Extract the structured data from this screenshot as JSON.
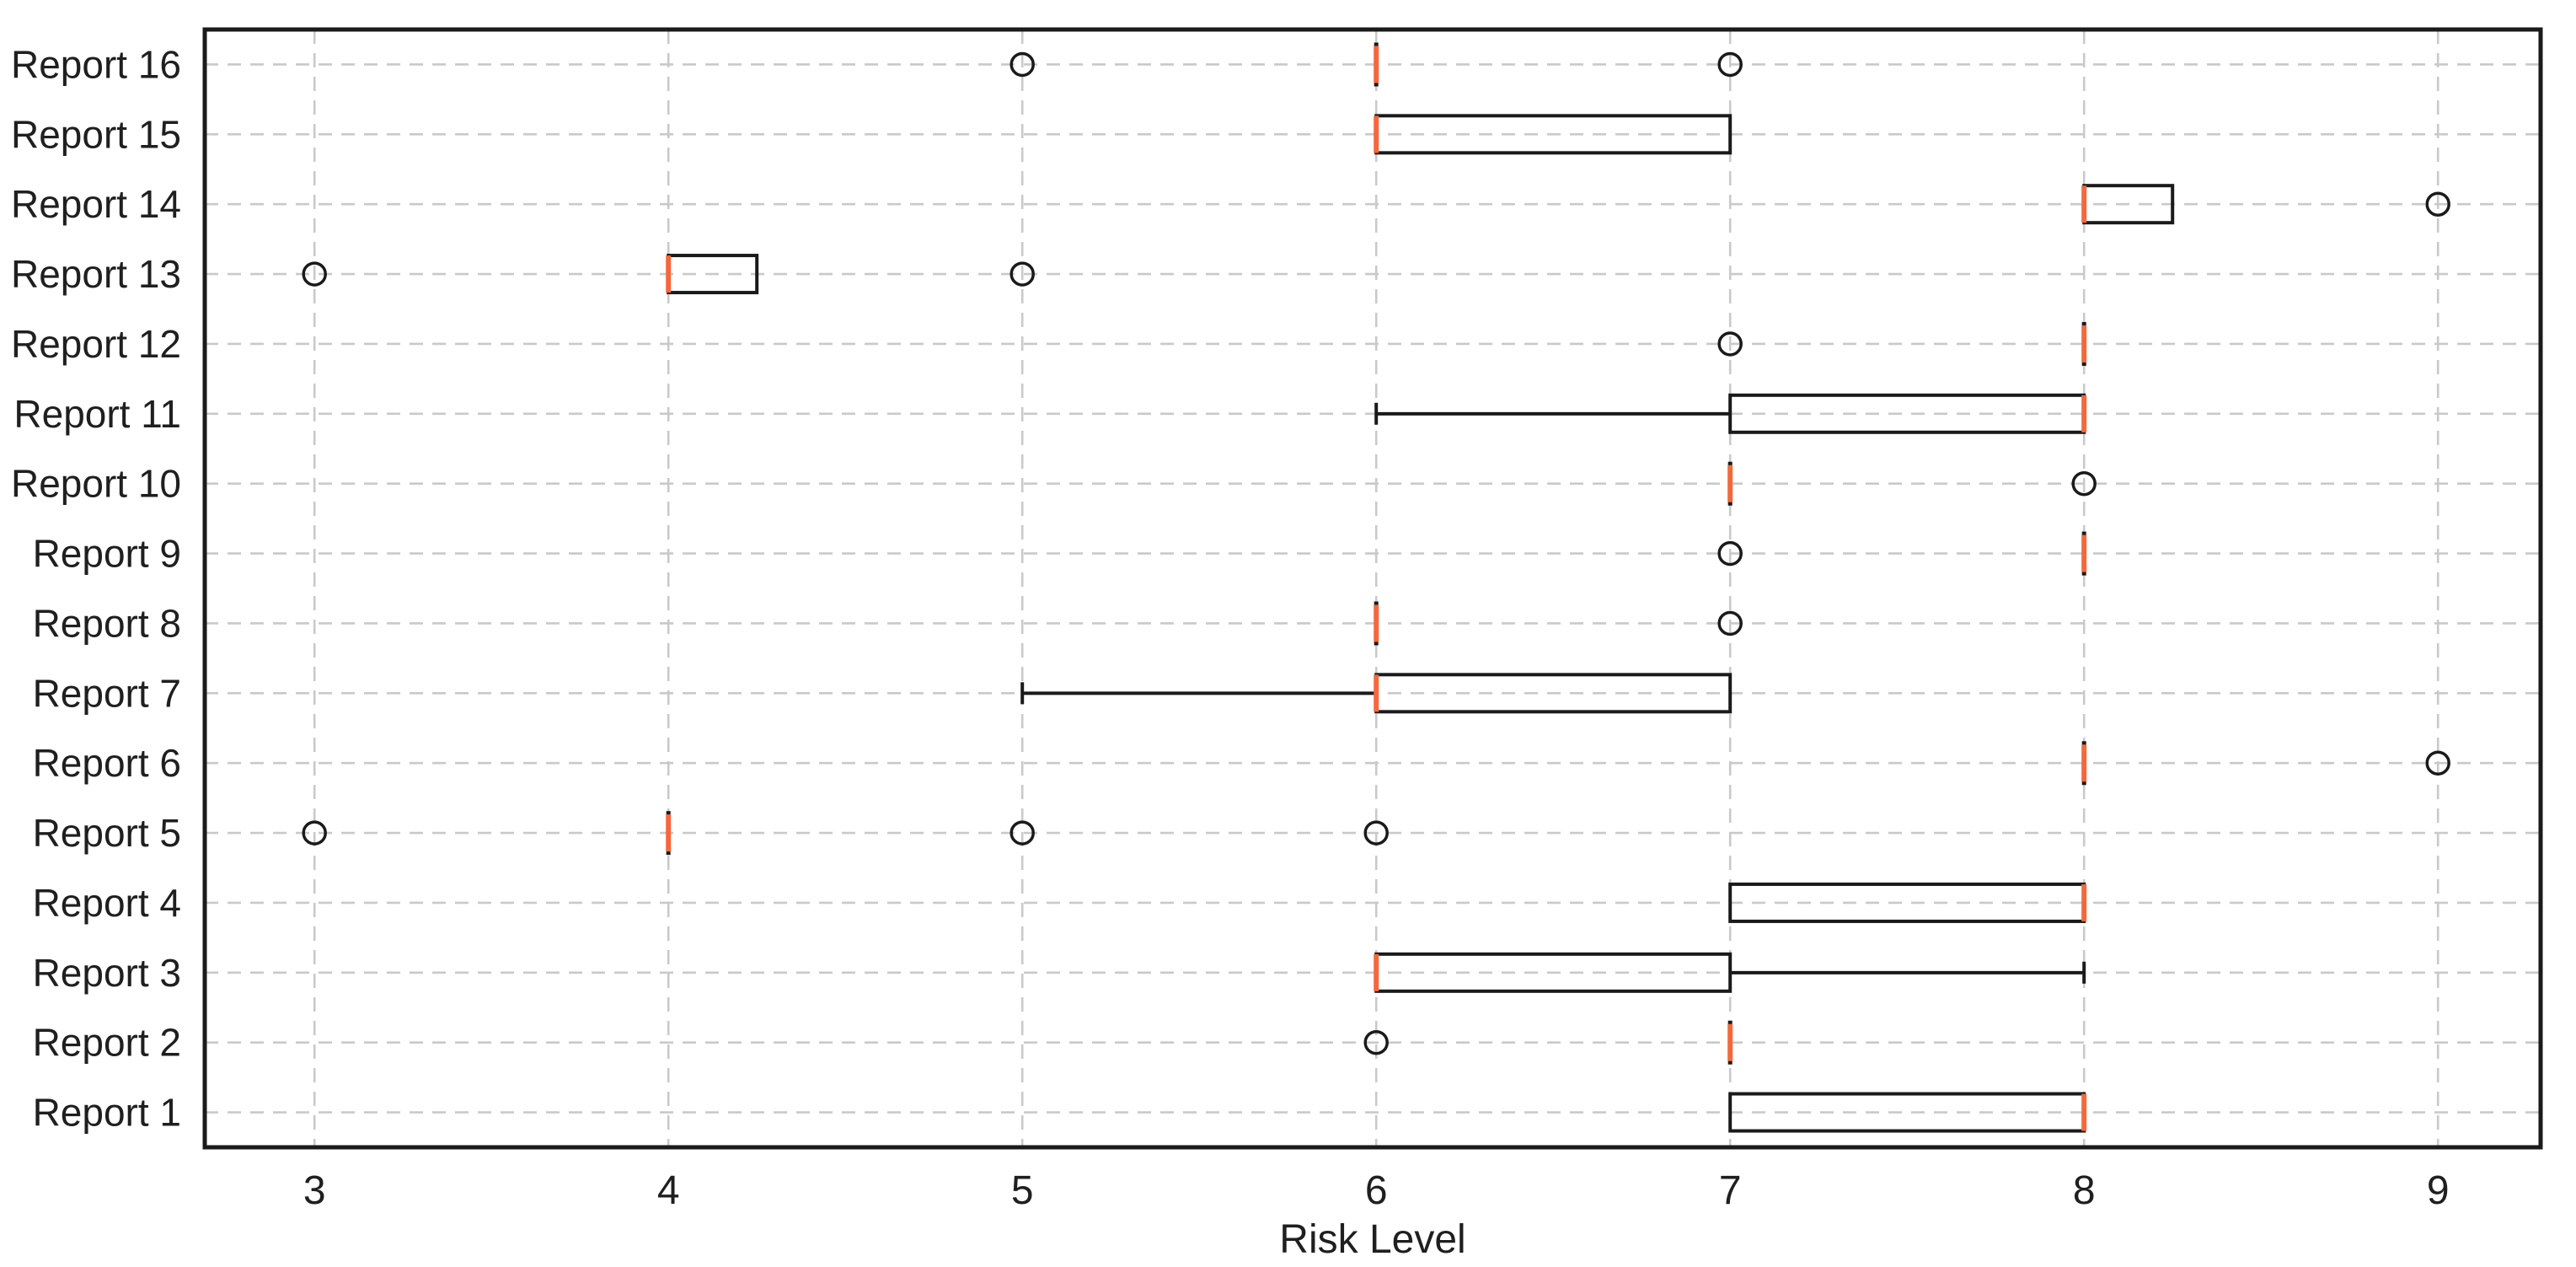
{
  "figure": {
    "background": "#ffffff",
    "border_color": "#1a1a1a"
  },
  "chart_data": {
    "type": "boxplot",
    "orientation": "horizontal",
    "title": "",
    "xlabel": "Risk Level",
    "ylabel": "",
    "x_ticks": [
      3,
      4,
      5,
      6,
      7,
      8,
      9
    ],
    "xlim": [
      2.69,
      9.29
    ],
    "grid": {
      "style": "dashed",
      "color": "#c9c9c9",
      "vertical": true,
      "horizontal": true
    },
    "colors": {
      "median": "#f4683c",
      "line": "#1a1a1a",
      "text": "#1f1f1f"
    },
    "legend": "none",
    "categories": [
      "Report 1",
      "Report 2",
      "Report 3",
      "Report 4",
      "Report 5",
      "Report 6",
      "Report 7",
      "Report 8",
      "Report 9",
      "Report 10",
      "Report 11",
      "Report 12",
      "Report 13",
      "Report 14",
      "Report 15",
      "Report 16"
    ],
    "series": [
      {
        "name": "Report 1",
        "whislo": 7,
        "q1": 7,
        "med": 8,
        "q3": 8,
        "whishi": 8,
        "fliers": []
      },
      {
        "name": "Report 2",
        "whislo": 7,
        "q1": 7,
        "med": 7,
        "q3": 7,
        "whishi": 7,
        "fliers": [
          6
        ]
      },
      {
        "name": "Report 3",
        "whislo": 6,
        "q1": 6,
        "med": 6,
        "q3": 7,
        "whishi": 8,
        "fliers": []
      },
      {
        "name": "Report 4",
        "whislo": 7,
        "q1": 7,
        "med": 8,
        "q3": 8,
        "whishi": 8,
        "fliers": []
      },
      {
        "name": "Report 5",
        "whislo": 4,
        "q1": 4,
        "med": 4,
        "q3": 4,
        "whishi": 4,
        "fliers": [
          3,
          5,
          6
        ]
      },
      {
        "name": "Report 6",
        "whislo": 8,
        "q1": 8,
        "med": 8,
        "q3": 8,
        "whishi": 8,
        "fliers": [
          9
        ]
      },
      {
        "name": "Report 7",
        "whislo": 5,
        "q1": 6,
        "med": 6,
        "q3": 7,
        "whishi": 7,
        "fliers": []
      },
      {
        "name": "Report 8",
        "whislo": 6,
        "q1": 6,
        "med": 6,
        "q3": 6,
        "whishi": 6,
        "fliers": [
          7
        ]
      },
      {
        "name": "Report 9",
        "whislo": 8,
        "q1": 8,
        "med": 8,
        "q3": 8,
        "whishi": 8,
        "fliers": [
          7
        ]
      },
      {
        "name": "Report 10",
        "whislo": 7,
        "q1": 7,
        "med": 7,
        "q3": 7,
        "whishi": 7,
        "fliers": [
          8
        ]
      },
      {
        "name": "Report 11",
        "whislo": 6,
        "q1": 7,
        "med": 8,
        "q3": 8,
        "whishi": 8,
        "fliers": []
      },
      {
        "name": "Report 12",
        "whislo": 8,
        "q1": 8,
        "med": 8,
        "q3": 8,
        "whishi": 8,
        "fliers": [
          7
        ]
      },
      {
        "name": "Report 13",
        "whislo": 4,
        "q1": 4,
        "med": 4,
        "q3": 4.25,
        "whishi": 4.25,
        "fliers": [
          3,
          5
        ]
      },
      {
        "name": "Report 14",
        "whislo": 8,
        "q1": 8,
        "med": 8,
        "q3": 8.25,
        "whishi": 8.25,
        "fliers": [
          9
        ]
      },
      {
        "name": "Report 15",
        "whislo": 6,
        "q1": 6,
        "med": 6,
        "q3": 7,
        "whishi": 7,
        "fliers": []
      },
      {
        "name": "Report 16",
        "whislo": 6,
        "q1": 6,
        "med": 6,
        "q3": 6,
        "whishi": 6,
        "fliers": [
          5,
          7
        ]
      }
    ]
  }
}
